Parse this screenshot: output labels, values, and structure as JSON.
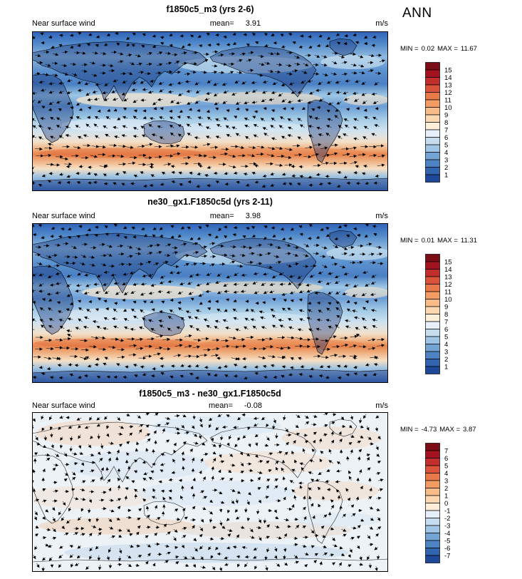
{
  "header": {
    "season": "ANN"
  },
  "panels": [
    {
      "title": "f1850c5_m3 (yrs 2-6)",
      "variable": "Near surface wind",
      "mean_label": "mean=",
      "mean_value": "3.91",
      "units": "m/s",
      "min_label": "MIN =",
      "min_value": "0.02",
      "max_label": "MAX =",
      "max_value": "11.67",
      "map_style": "speed",
      "colorbar": {
        "labels": [
          "15",
          "14",
          "13",
          "12",
          "11",
          "10",
          "9",
          "8",
          "7",
          "6",
          "5",
          "4",
          "3",
          "2",
          "1"
        ],
        "colors": [
          "#7c0d16",
          "#a3131f",
          "#c22e2b",
          "#d9533a",
          "#e97949",
          "#f29c63",
          "#f8bc88",
          "#fbd8b2",
          "#fdeeda",
          "#e7f0f8",
          "#c6dcef",
          "#a0c4e4",
          "#74a4d4",
          "#4d83c3",
          "#3263ae",
          "#1f4898"
        ]
      }
    },
    {
      "title": "ne30_gx1.F1850c5d (yrs 2-11)",
      "variable": "Near surface wind",
      "mean_label": "mean=",
      "mean_value": "3.98",
      "units": "m/s",
      "min_label": "MIN =",
      "min_value": "0.01",
      "max_label": "MAX =",
      "max_value": "11.31",
      "map_style": "speed",
      "colorbar": {
        "labels": [
          "15",
          "14",
          "13",
          "12",
          "11",
          "10",
          "9",
          "8",
          "7",
          "6",
          "5",
          "4",
          "3",
          "2",
          "1"
        ],
        "colors": [
          "#7c0d16",
          "#a3131f",
          "#c22e2b",
          "#d9533a",
          "#e97949",
          "#f29c63",
          "#f8bc88",
          "#fbd8b2",
          "#fdeeda",
          "#e7f0f8",
          "#c6dcef",
          "#a0c4e4",
          "#74a4d4",
          "#4d83c3",
          "#3263ae",
          "#1f4898"
        ]
      }
    },
    {
      "title": "f1850c5_m3 - ne30_gx1.F1850c5d",
      "variable": "Near surface wind",
      "mean_label": "mean=",
      "mean_value": "-0.08",
      "units": "m/s",
      "min_label": "MIN =",
      "min_value": "-4.73",
      "max_label": "MAX =",
      "max_value": "3.87",
      "map_style": "diff",
      "colorbar": {
        "labels": [
          "7",
          "6",
          "5",
          "4",
          "3",
          "2",
          "1",
          "0",
          "-1",
          "-2",
          "-3",
          "-4",
          "-5",
          "-6",
          "-7"
        ],
        "colors": [
          "#7c0d16",
          "#a3131f",
          "#c22e2b",
          "#d9533a",
          "#e97949",
          "#f29c63",
          "#f8bc88",
          "#fbd8b2",
          "#fdeeda",
          "#e7f0f8",
          "#c6dcef",
          "#a0c4e4",
          "#74a4d4",
          "#4d83c3",
          "#3263ae",
          "#1f4898"
        ]
      }
    }
  ],
  "chart_data": [
    {
      "type": "heatmap",
      "title": "f1850c5_m3 (yrs 2-6)",
      "variable": "Near surface wind",
      "units": "m/s",
      "season": "ANN",
      "mean": 3.91,
      "min": 0.02,
      "max": 11.67,
      "contour_levels": [
        1,
        2,
        3,
        4,
        5,
        6,
        7,
        8,
        9,
        10,
        11,
        12,
        13,
        14,
        15
      ],
      "projection": "global lon-lat, 0-360E left to right, 90N top to 90S bottom",
      "overlay": "wind vector arrows",
      "legend_position": "right vertical labelbar",
      "description": "Annual-mean near-surface wind speed: strong westerly band 9-12 m/s over the Southern Ocean near 50S, trade-wind bands 6-8 m/s in the subtropics, weak winds 1-3 m/s over continents, mid-blue 3-5 m/s over most oceans."
    },
    {
      "type": "heatmap",
      "title": "ne30_gx1.F1850c5d (yrs 2-11)",
      "variable": "Near surface wind",
      "units": "m/s",
      "season": "ANN",
      "mean": 3.98,
      "min": 0.01,
      "max": 11.31,
      "contour_levels": [
        1,
        2,
        3,
        4,
        5,
        6,
        7,
        8,
        9,
        10,
        11,
        12,
        13,
        14,
        15
      ],
      "projection": "global lon-lat, 0-360E left to right, 90N top to 90S bottom",
      "overlay": "wind vector arrows",
      "legend_position": "right vertical labelbar",
      "description": "Annual-mean near-surface wind speed for the second model case; spatial pattern nearly identical to the first panel with Southern Ocean westerly maximum and subtropical trade-wind bands."
    },
    {
      "type": "heatmap",
      "title": "f1850c5_m3 - ne30_gx1.F1850c5d",
      "variable": "Near surface wind",
      "units": "m/s",
      "season": "ANN",
      "mean": -0.08,
      "min": -4.73,
      "max": 3.87,
      "contour_levels": [
        -7,
        -6,
        -5,
        -4,
        -3,
        -2,
        -1,
        0,
        1,
        2,
        3,
        4,
        5,
        6,
        7
      ],
      "projection": "global lon-lat, 0-360E left to right, 90N top to 90S bottom",
      "overlay": "wind vector difference arrows",
      "legend_position": "right vertical labelbar",
      "description": "Difference of annual-mean near-surface wind speed: mostly small values within +/-1 m/s, mottled light blue and light red patches with a weak pink band in the southern midlatitudes and light blue near Antarctica."
    }
  ]
}
